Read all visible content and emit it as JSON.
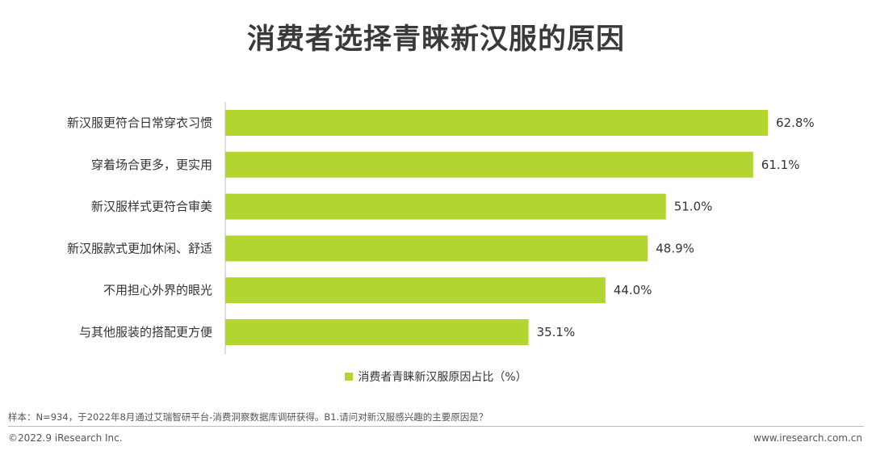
{
  "title": "消费者选择青睐新汉服的原因",
  "chart_data": {
    "type": "bar",
    "orientation": "horizontal",
    "categories": [
      "新汉服更符合日常穿衣习惯",
      "穿着场合更多，更实用",
      "新汉服样式更符合审美",
      "新汉服款式更加休闲、舒适",
      "不用担心外界的眼光",
      "与其他服装的搭配更方便"
    ],
    "series": [
      {
        "name": "消费者青睐新汉服原因占比（%）",
        "values": [
          62.8,
          61.1,
          51.0,
          48.9,
          44.0,
          35.1
        ],
        "color": "#b3d52f"
      }
    ],
    "value_labels": [
      "62.8%",
      "61.1%",
      "51.0%",
      "48.9%",
      "44.0%",
      "35.1%"
    ],
    "xlim": [
      0,
      70
    ],
    "grid": false,
    "legend_position": "bottom"
  },
  "legend_label": "消费者青睐新汉服原因占比（%）",
  "footer": {
    "note": "样本：N=934，于2022年8月通过艾瑞智研平台-消费洞察数据库调研获得。B1.请问对新汉服感兴趣的主要原因是？",
    "copyright": "©2022.9 iResearch Inc.",
    "website": "www.iresearch.com.cn"
  }
}
